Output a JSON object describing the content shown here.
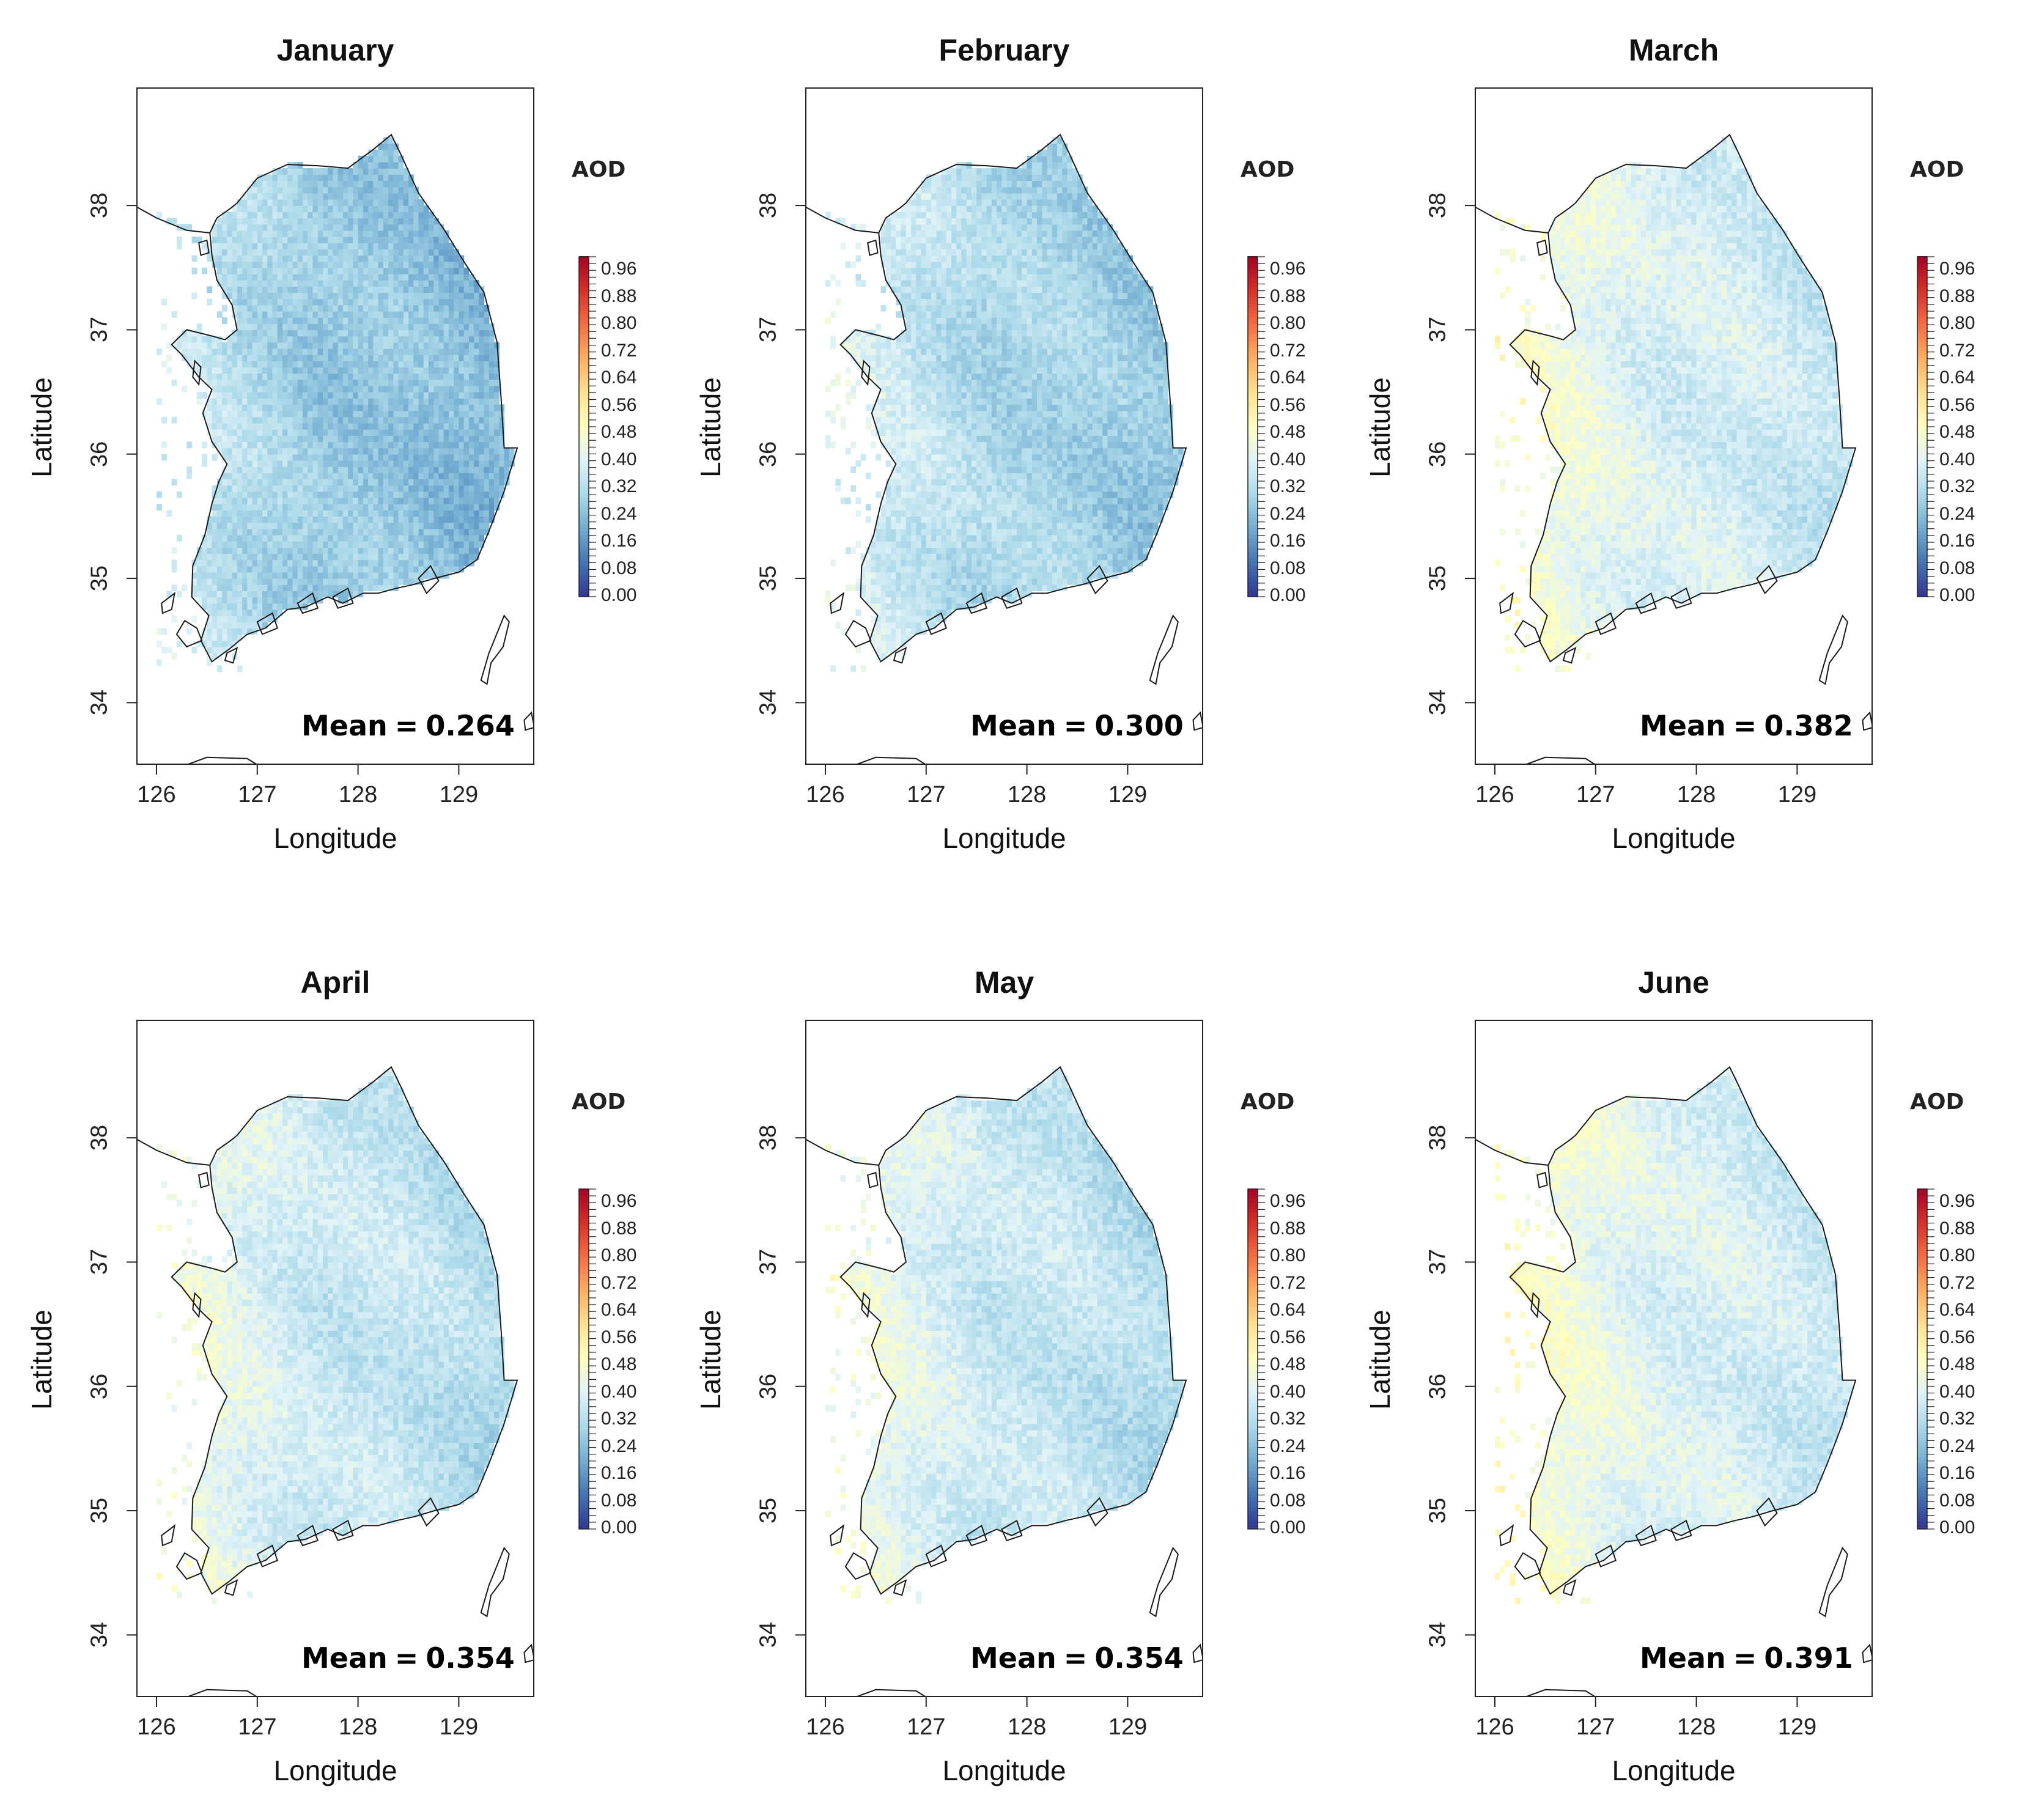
{
  "chart_data": [
    {
      "type": "heatmap",
      "title": "January",
      "xlabel": "Longitude",
      "ylabel": "Latitude",
      "xlim": [
        125.8,
        129.75
      ],
      "ylim": [
        33.5,
        38.95
      ],
      "xticks": [
        126,
        127,
        128,
        129
      ],
      "yticks": [
        34,
        35,
        36,
        37,
        38
      ],
      "mean_label": "Mean",
      "mean_value": "0.264",
      "mean": 0.264
    },
    {
      "type": "heatmap",
      "title": "February",
      "xlabel": "Longitude",
      "ylabel": "Latitude",
      "xlim": [
        125.8,
        129.75
      ],
      "ylim": [
        33.5,
        38.95
      ],
      "xticks": [
        126,
        127,
        128,
        129
      ],
      "yticks": [
        34,
        35,
        36,
        37,
        38
      ],
      "mean_label": "Mean",
      "mean_value": "0.300",
      "mean": 0.3
    },
    {
      "type": "heatmap",
      "title": "March",
      "xlabel": "Longitude",
      "ylabel": "Latitude",
      "xlim": [
        125.8,
        129.75
      ],
      "ylim": [
        33.5,
        38.95
      ],
      "xticks": [
        126,
        127,
        128,
        129
      ],
      "yticks": [
        34,
        35,
        36,
        37,
        38
      ],
      "mean_label": "Mean",
      "mean_value": "0.382",
      "mean": 0.382
    },
    {
      "type": "heatmap",
      "title": "April",
      "xlabel": "Longitude",
      "ylabel": "Latitude",
      "xlim": [
        125.8,
        129.75
      ],
      "ylim": [
        33.5,
        38.95
      ],
      "xticks": [
        126,
        127,
        128,
        129
      ],
      "yticks": [
        34,
        35,
        36,
        37,
        38
      ],
      "mean_label": "Mean",
      "mean_value": "0.354",
      "mean": 0.354
    },
    {
      "type": "heatmap",
      "title": "May",
      "xlabel": "Longitude",
      "ylabel": "Latitude",
      "xlim": [
        125.8,
        129.75
      ],
      "ylim": [
        33.5,
        38.95
      ],
      "xticks": [
        126,
        127,
        128,
        129
      ],
      "yticks": [
        34,
        35,
        36,
        37,
        38
      ],
      "mean_label": "Mean",
      "mean_value": "0.354",
      "mean": 0.354
    },
    {
      "type": "heatmap",
      "title": "June",
      "xlabel": "Longitude",
      "ylabel": "Latitude",
      "xlim": [
        125.8,
        129.75
      ],
      "ylim": [
        33.5,
        38.95
      ],
      "xticks": [
        126,
        127,
        128,
        129
      ],
      "yticks": [
        34,
        35,
        36,
        37,
        38
      ],
      "mean_label": "Mean",
      "mean_value": "0.391",
      "mean": 0.391
    }
  ],
  "legend": {
    "title": "AOD",
    "range": [
      0.0,
      1.0
    ],
    "tick_labels": [
      "0.96",
      "0.88",
      "0.80",
      "0.72",
      "0.64",
      "0.56",
      "0.48",
      "0.40",
      "0.32",
      "0.24",
      "0.16",
      "0.08",
      "0.00"
    ],
    "tick_values": [
      0.96,
      0.88,
      0.8,
      0.72,
      0.64,
      0.56,
      0.48,
      0.4,
      0.32,
      0.24,
      0.16,
      0.08,
      0.0
    ],
    "colors": [
      "#313695",
      "#4575b4",
      "#74add1",
      "#abd9e9",
      "#e0f3f8",
      "#ffffbf",
      "#fee090",
      "#fdae61",
      "#f46d43",
      "#d73027",
      "#a50026"
    ]
  },
  "map_style": {
    "coast_color": "#1a1a1a",
    "frame_color": "#222222"
  }
}
